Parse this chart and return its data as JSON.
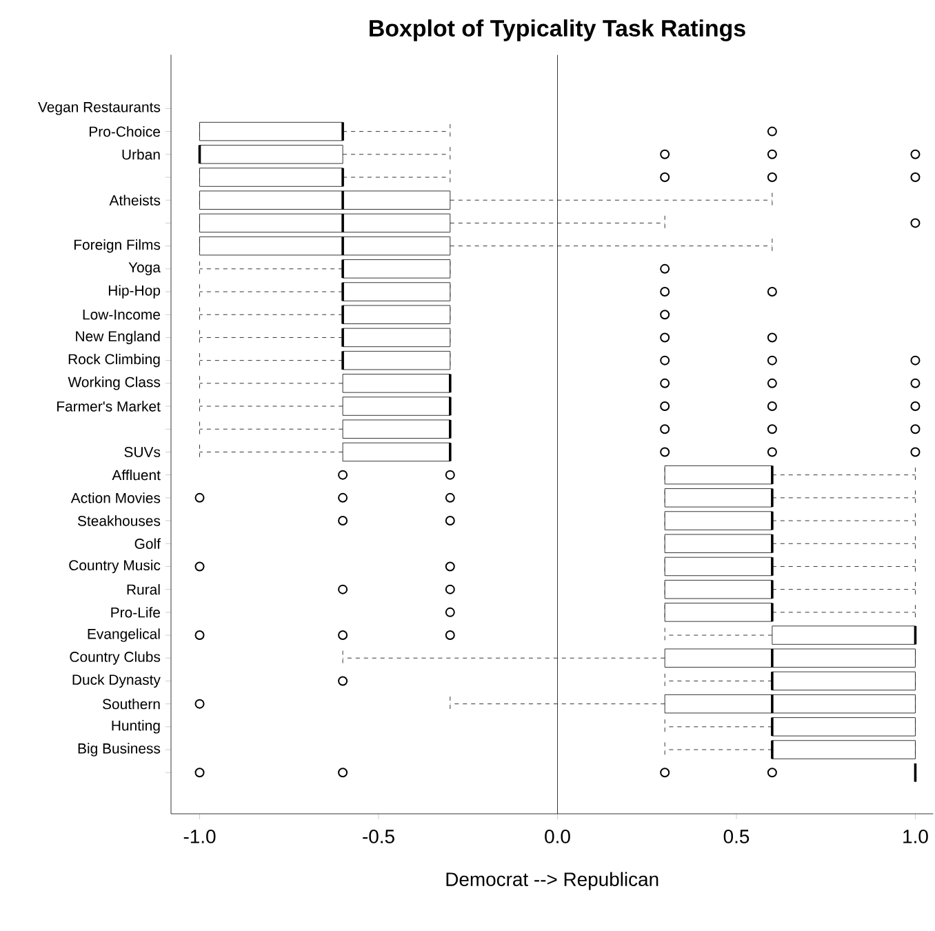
{
  "chart_data": {
    "type": "box",
    "orientation": "horizontal",
    "title": "Boxplot of Typicality Task Ratings",
    "xlabel": "Democrat --> Republican",
    "categories": [
      "Vegan Restaurants",
      "Pro-Choice",
      "Urban",
      null,
      "Atheists",
      null,
      "Foreign Films",
      "Yoga",
      "Hip-Hop",
      "Low-Income",
      "New England",
      "Rock Climbing",
      "Working Class",
      "Farmer's Market",
      null,
      "SUVs",
      "Affluent",
      "Action Movies",
      "Steakhouses",
      "Golf",
      "Country Music",
      "Rural",
      "Pro-Life",
      "Evangelical",
      "Country Clubs",
      "Duck Dynasty",
      "Southern",
      "Hunting",
      "Big Business",
      null
    ],
    "boxes": [
      null,
      {
        "low": -1,
        "q1": -1,
        "median": -0.6,
        "q3": -0.6,
        "high": -0.3,
        "outliers": [
          0.6
        ]
      },
      {
        "low": -1,
        "q1": -1,
        "median": -1,
        "q3": -0.6,
        "high": -0.3,
        "outliers": [
          0.3,
          0.6,
          1
        ]
      },
      {
        "low": -1,
        "q1": -1,
        "median": -0.6,
        "q3": -0.6,
        "high": -0.3,
        "outliers": [
          0.3,
          0.6,
          1
        ]
      },
      {
        "low": -1,
        "q1": -1,
        "median": -0.6,
        "q3": -0.3,
        "high": 0.6
      },
      {
        "low": -1,
        "q1": -1,
        "median": -0.6,
        "q3": -0.3,
        "high": 0.3,
        "outliers": [
          1
        ]
      },
      {
        "low": -1,
        "q1": -1,
        "median": -0.6,
        "q3": -0.3,
        "high": 0.6
      },
      {
        "low": -1,
        "q1": -0.6,
        "median": -0.6,
        "q3": -0.3,
        "high": -0.3,
        "outliers": [
          0.3
        ]
      },
      {
        "low": -1,
        "q1": -0.6,
        "median": -0.6,
        "q3": -0.3,
        "high": -0.3,
        "outliers": [
          0.3,
          0.6
        ]
      },
      {
        "low": -1,
        "q1": -0.6,
        "median": -0.6,
        "q3": -0.3,
        "high": -0.3,
        "outliers": [
          0.3
        ]
      },
      {
        "low": -1,
        "q1": -0.6,
        "median": -0.6,
        "q3": -0.3,
        "high": -0.3,
        "outliers": [
          0.3,
          0.6
        ]
      },
      {
        "low": -1,
        "q1": -0.6,
        "median": -0.6,
        "q3": -0.3,
        "high": -0.3,
        "outliers": [
          0.3,
          0.6,
          1
        ]
      },
      {
        "low": -1,
        "q1": -0.6,
        "median": -0.3,
        "q3": -0.3,
        "high": -0.3,
        "outliers": [
          0.3,
          0.6,
          1
        ]
      },
      {
        "low": -1,
        "q1": -0.6,
        "median": -0.3,
        "q3": -0.3,
        "high": -0.3,
        "outliers": [
          0.3,
          0.6,
          1
        ]
      },
      {
        "low": -1,
        "q1": -0.6,
        "median": -0.3,
        "q3": -0.3,
        "high": -0.3,
        "outliers": [
          0.3,
          0.6,
          1
        ]
      },
      {
        "low": -1,
        "q1": -0.6,
        "median": -0.3,
        "q3": -0.3,
        "high": -0.3,
        "outliers": [
          0.3,
          0.6,
          1
        ]
      },
      {
        "low": 0.3,
        "q1": 0.3,
        "median": 0.6,
        "q3": 0.6,
        "high": 1,
        "outliers": [
          -0.6,
          -0.3
        ]
      },
      {
        "low": 0.3,
        "q1": 0.3,
        "median": 0.6,
        "q3": 0.6,
        "high": 1,
        "outliers": [
          -1,
          -0.6,
          -0.3
        ]
      },
      {
        "low": 0.3,
        "q1": 0.3,
        "median": 0.6,
        "q3": 0.6,
        "high": 1,
        "outliers": [
          -0.6,
          -0.3
        ]
      },
      {
        "low": 0.3,
        "q1": 0.3,
        "median": 0.6,
        "q3": 0.6,
        "high": 1
      },
      {
        "low": 0.3,
        "q1": 0.3,
        "median": 0.6,
        "q3": 0.6,
        "high": 1,
        "outliers": [
          -1,
          -0.3
        ]
      },
      {
        "low": 0.3,
        "q1": 0.3,
        "median": 0.6,
        "q3": 0.6,
        "high": 1,
        "outliers": [
          -0.6,
          -0.3
        ]
      },
      {
        "low": 0.3,
        "q1": 0.3,
        "median": 0.6,
        "q3": 0.6,
        "high": 1,
        "outliers": [
          -0.3
        ]
      },
      {
        "low": 0.3,
        "q1": 0.6,
        "median": 1,
        "q3": 1,
        "high": 1,
        "outliers": [
          -1,
          -0.6,
          -0.3
        ]
      },
      {
        "low": -0.6,
        "q1": 0.3,
        "median": 0.6,
        "q3": 1,
        "high": 1
      },
      {
        "low": 0.3,
        "q1": 0.6,
        "median": 0.6,
        "q3": 1,
        "high": 1,
        "outliers": [
          -0.6
        ]
      },
      {
        "low": -0.3,
        "q1": 0.3,
        "median": 0.6,
        "q3": 1,
        "high": 1,
        "outliers": [
          -1
        ]
      },
      {
        "low": 0.3,
        "q1": 0.6,
        "median": 0.6,
        "q3": 1,
        "high": 1
      },
      {
        "low": 0.3,
        "q1": 0.6,
        "median": 0.6,
        "q3": 1,
        "high": 1
      },
      {
        "low": 1,
        "q1": 1,
        "median": 1,
        "q3": 1,
        "high": 1,
        "outliers": [
          -1,
          -0.6,
          0.3,
          0.6
        ]
      }
    ],
    "xlim": [
      -1.08,
      1.05
    ],
    "xticks": [
      {
        "value": -1,
        "label": "-1.0"
      },
      {
        "value": -0.5,
        "label": "-0.5"
      },
      {
        "value": 0,
        "label": "0.0"
      },
      {
        "value": 0.5,
        "label": "0.5"
      },
      {
        "value": 1,
        "label": "1.0"
      }
    ],
    "ref_lines": [
      {
        "axis": "x",
        "value": 0,
        "color": "#000000"
      }
    ],
    "marker": "circle",
    "grid": false
  }
}
